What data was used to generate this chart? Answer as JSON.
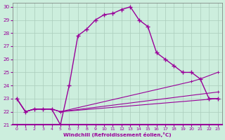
{
  "xlabel": "Windchill (Refroidissement éolien,°C)",
  "bg_color": "#cceedd",
  "grid_color": "#aaccbb",
  "line_color": "#990099",
  "xlim_min": -0.5,
  "xlim_max": 23.5,
  "ylim_min": 21.0,
  "ylim_max": 30.3,
  "yticks": [
    21,
    22,
    23,
    24,
    25,
    26,
    27,
    28,
    29,
    30
  ],
  "xticks": [
    0,
    1,
    2,
    3,
    4,
    5,
    6,
    7,
    8,
    9,
    10,
    11,
    12,
    13,
    14,
    15,
    16,
    17,
    18,
    19,
    20,
    21,
    22,
    23
  ],
  "main_x": [
    0,
    1,
    2,
    3,
    4,
    5,
    6,
    7,
    8,
    9,
    10,
    11,
    12,
    13,
    14,
    15,
    16,
    17,
    18,
    19,
    20,
    21,
    22,
    23
  ],
  "main_y": [
    23.0,
    22.0,
    22.2,
    22.2,
    22.2,
    21.0,
    24.0,
    27.8,
    28.3,
    29.0,
    29.4,
    29.5,
    29.8,
    30.0,
    29.0,
    28.5,
    26.5,
    26.0,
    25.5,
    25.0,
    25.0,
    24.5,
    23.0,
    23.0
  ],
  "flat1_x": [
    0,
    1,
    2,
    3,
    4,
    5,
    23
  ],
  "flat1_y": [
    23.0,
    22.0,
    22.2,
    22.2,
    22.2,
    22.0,
    23.0
  ],
  "flat2_x": [
    0,
    1,
    2,
    3,
    4,
    5,
    23
  ],
  "flat2_y": [
    23.0,
    22.0,
    22.2,
    22.2,
    22.2,
    22.0,
    23.5
  ],
  "flat3_x": [
    0,
    1,
    2,
    3,
    4,
    5,
    20,
    21,
    23
  ],
  "flat3_y": [
    23.0,
    22.0,
    22.2,
    22.2,
    22.2,
    22.0,
    24.3,
    24.5,
    25.0
  ]
}
